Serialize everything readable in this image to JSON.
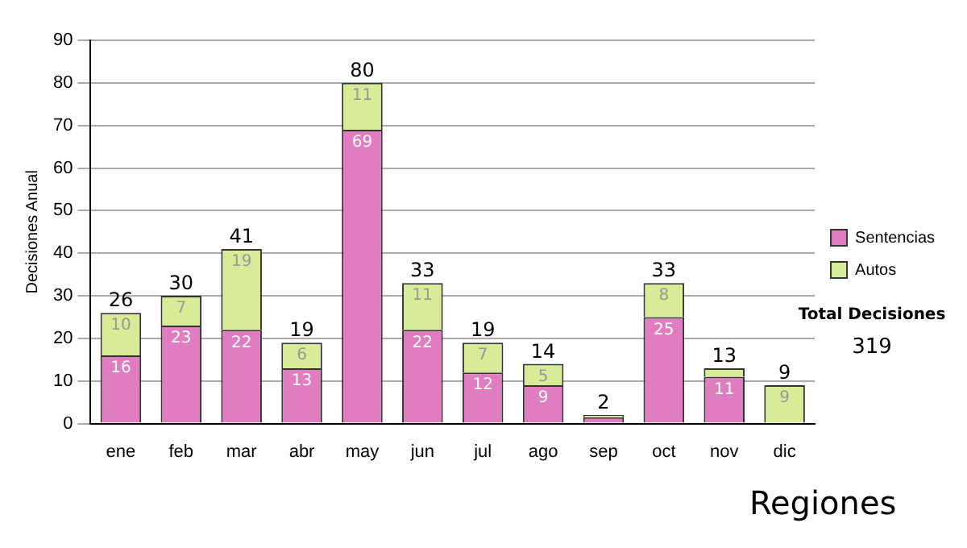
{
  "chart_data": {
    "type": "bar",
    "stacked": true,
    "ylabel": "Decisiones Anual",
    "categories": [
      "ene",
      "feb",
      "mar",
      "abr",
      "may",
      "jun",
      "jul",
      "ago",
      "sep",
      "oct",
      "nov",
      "dic"
    ],
    "series": [
      {
        "name": "Sentencias",
        "color": "#e07cc0",
        "values": [
          16,
          23,
          22,
          13,
          69,
          22,
          12,
          9,
          1.5,
          25,
          11,
          0
        ],
        "value_labels": [
          "16",
          "23",
          "22",
          "13",
          "69",
          "22",
          "12",
          "9",
          null,
          "25",
          "11",
          null
        ]
      },
      {
        "name": "Autos",
        "color": "#d8ec98",
        "values": [
          10,
          7,
          19,
          6,
          11,
          11,
          7,
          5,
          0.5,
          8,
          2,
          9
        ],
        "value_labels": [
          "10",
          "7",
          "19",
          "6",
          "11",
          "11",
          "7",
          "5",
          null,
          "8",
          null,
          "9"
        ]
      }
    ],
    "totals": [
      "26",
      "30",
      "41",
      "19",
      "80",
      "33",
      "19",
      "14",
      "2",
      "33",
      "13",
      "9"
    ],
    "ylim": [
      0,
      90
    ],
    "yticks": [
      0,
      10,
      20,
      30,
      40,
      50,
      60,
      70,
      80,
      90
    ],
    "grid": "y",
    "legend": "right",
    "annotations": [
      "Total Decisiones",
      "319",
      "Regiones"
    ]
  }
}
